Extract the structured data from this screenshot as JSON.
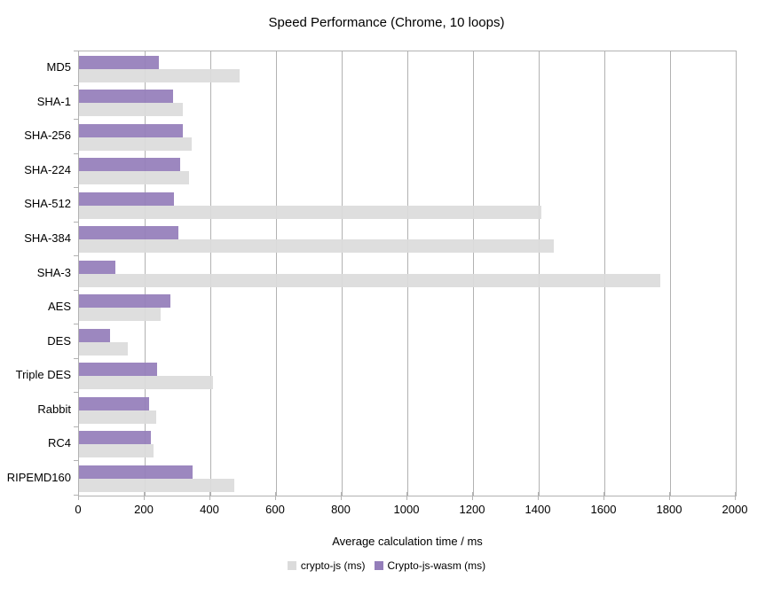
{
  "chart_data": {
    "type": "bar",
    "orientation": "horizontal",
    "title": "Speed Performance (Chrome, 10 loops)",
    "xlabel": "Average calculation time / ms",
    "categories": [
      "MD5",
      "SHA-1",
      "SHA-256",
      "SHA-224",
      "SHA-512",
      "SHA-384",
      "SHA-3",
      "AES",
      "DES",
      "Triple DES",
      "Rabbit",
      "RC4",
      "RIPEMD160"
    ],
    "series": [
      {
        "name": "crypto-js (ms)",
        "color": "#dbdbdb",
        "values": [
          489,
          317,
          342,
          334,
          1408,
          1446,
          1769,
          249,
          149,
          407,
          235,
          228,
          474
        ]
      },
      {
        "name": "Crypto-js-wasm (ms)",
        "color": "#947eba",
        "values": [
          244,
          287,
          316,
          308,
          289,
          303,
          111,
          278,
          94,
          239,
          214,
          219,
          346
        ]
      }
    ],
    "xlim": [
      0,
      2000
    ],
    "xticks": [
      0,
      200,
      400,
      600,
      800,
      1000,
      1200,
      1400,
      1600,
      1800,
      2000
    ],
    "grid": true,
    "legend_position": "bottom"
  },
  "colors": {
    "background": "#ffffff",
    "axis_frame": "#b2b2b2",
    "gridline": "#b2b2b2",
    "text": "#000000"
  }
}
